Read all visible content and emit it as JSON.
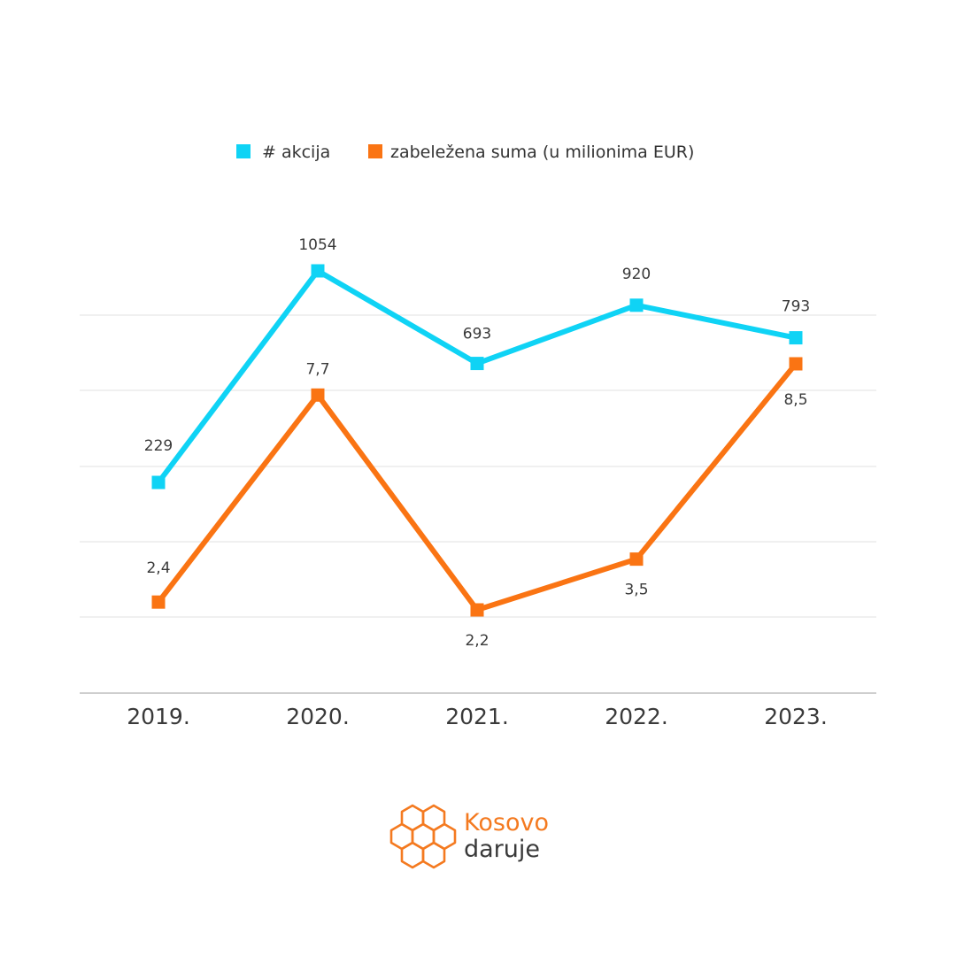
{
  "chart_data": {
    "type": "line",
    "categories": [
      "2019.",
      "2020.",
      "2021.",
      "2022.",
      "2023."
    ],
    "series": [
      {
        "name": "# akcija",
        "values": [
          229,
          1054,
          693,
          920,
          793
        ],
        "labels": [
          "229",
          "1054",
          "693",
          "920",
          "793"
        ],
        "color": "#0fd3f5"
      },
      {
        "name": "zabeležena suma (u milionima EUR)",
        "values": [
          2.4,
          7.7,
          2.2,
          3.5,
          8.5
        ],
        "labels": [
          "2,4",
          "7,7",
          "2,2",
          "3,5",
          "8,5"
        ],
        "color": "#fa7413"
      }
    ],
    "grid": true,
    "legend": "top"
  },
  "logo": {
    "line1": "Kosovo",
    "line2": "daruje",
    "brand_color": "#f47a20",
    "text_color": "#3a3a3a"
  }
}
